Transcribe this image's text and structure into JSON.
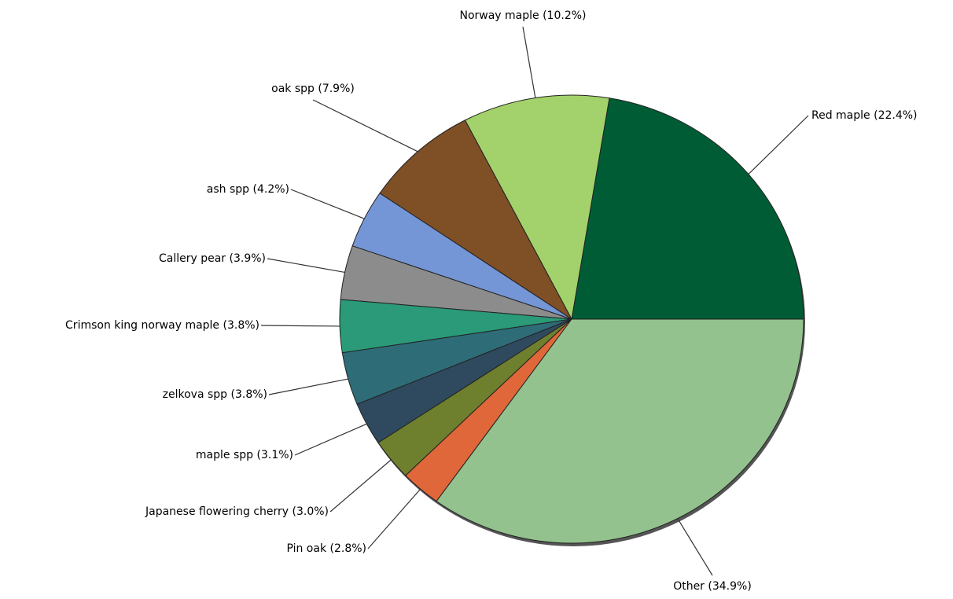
{
  "chart_data": {
    "type": "pie",
    "values": [
      22.4,
      10.2,
      7.9,
      4.2,
      3.9,
      3.8,
      3.8,
      3.1,
      3.0,
      2.8,
      34.9
    ],
    "value_labels": [
      "Red maple (22.4%)",
      "Norway maple (10.2%)",
      "oak spp (7.9%)",
      "ash spp (4.2%)",
      "Callery pear (3.9%)",
      "Crimson king norway maple (3.8%)",
      "zelkova spp (3.8%)",
      "maple spp (3.1%)",
      "Japanese flowering cherry (3.0%)",
      "Pin oak (2.8%)",
      "Other (34.9%)"
    ],
    "colors": [
      "#005c35",
      "#a3d16b",
      "#7f4f26",
      "#7596d6",
      "#8c8c8c",
      "#2a9a78",
      "#2e6c78",
      "#2f4a5e",
      "#6e7f2e",
      "#e0673a",
      "#94c28e"
    ]
  }
}
